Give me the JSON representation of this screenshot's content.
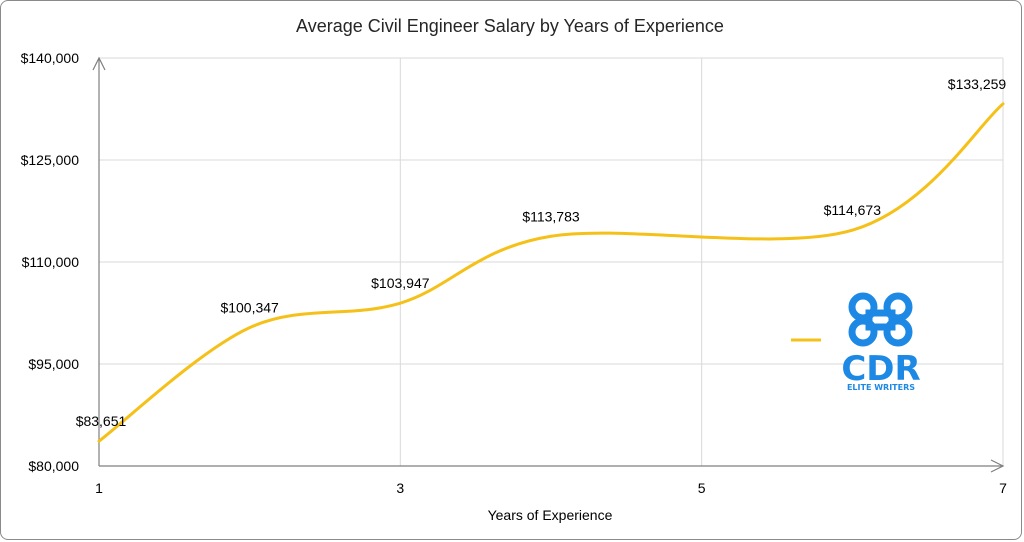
{
  "chart_data": {
    "type": "line",
    "title": "Average Civil Engineer Salary by Years of Experience",
    "xlabel": "Years of Experience",
    "ylabel": "",
    "x": [
      1,
      2,
      3,
      4,
      6,
      7
    ],
    "series": [
      {
        "values": [
          83651,
          100347,
          103947,
          113783,
          114673,
          133259
        ],
        "labels": [
          "$83,651",
          "$100,347",
          "$103,947",
          "$113,783",
          "$114,673",
          "$133,259"
        ],
        "color": "#f5c018"
      }
    ],
    "xlim": [
      1,
      7
    ],
    "ylim": [
      80000,
      140000
    ],
    "x_ticks": [
      {
        "value": 1,
        "label": "1"
      },
      {
        "value": 3,
        "label": "3"
      },
      {
        "value": 5,
        "label": "5"
      },
      {
        "value": 7,
        "label": "7"
      }
    ],
    "y_ticks": [
      {
        "value": 80000,
        "label": "$80,000"
      },
      {
        "value": 95000,
        "label": "$95,000"
      },
      {
        "value": 110000,
        "label": "$110,000"
      },
      {
        "value": 125000,
        "label": "$125,000"
      },
      {
        "value": 140000,
        "label": "$140,000"
      }
    ],
    "grid": true,
    "legend": "right"
  },
  "logo": {
    "text": "CDR",
    "subtext": "ELITE WRITERS",
    "color": "#1e88e5",
    "icon": "command-key-icon"
  },
  "colors": {
    "line": "#f5c018",
    "grid": "#d9d9d9",
    "axis": "#7f7f7f"
  }
}
